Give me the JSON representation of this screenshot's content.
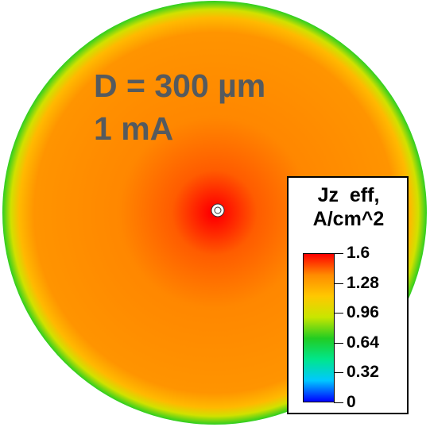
{
  "chart_data": {
    "type": "heatmap",
    "quantity": "Jz  eff,",
    "unit": "A/cm^2",
    "annotations": [
      "D = 300 µm",
      "1 mA"
    ],
    "colorbar": {
      "min": 0,
      "max": 1.6,
      "ticks": [
        {
          "label": "1.6",
          "value": 1.6
        },
        {
          "label": "1.28",
          "value": 1.28
        },
        {
          "label": "0.96",
          "value": 0.96
        },
        {
          "label": "0.64",
          "value": 0.64
        },
        {
          "label": "0.32",
          "value": 0.32
        },
        {
          "label": "0",
          "value": 0
        }
      ],
      "colors": [
        "#0000ff",
        "#00c8ff",
        "#00e68c",
        "#22cc22",
        "#c8e600",
        "#ffc800",
        "#ff8c00",
        "#ff0000"
      ]
    },
    "field_profile": [
      {
        "r": 0.02,
        "value": 1.6
      },
      {
        "r": 0.2,
        "value": 1.45
      },
      {
        "r": 0.45,
        "value": 1.38
      },
      {
        "r": 0.85,
        "value": 1.34
      },
      {
        "r": 0.92,
        "value": 1.2
      },
      {
        "r": 0.96,
        "value": 0.95
      },
      {
        "r": 1.0,
        "value": 0.7
      }
    ],
    "legend_position": "bottom-right"
  }
}
